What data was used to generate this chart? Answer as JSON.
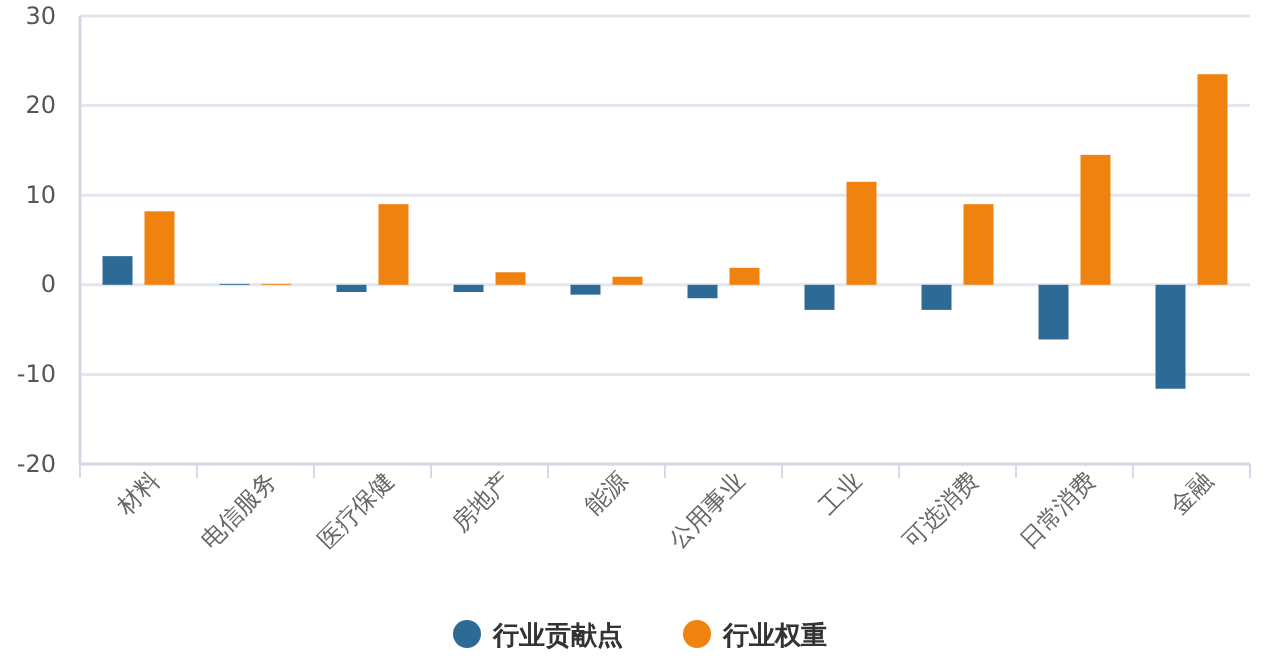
{
  "chart_data": {
    "type": "bar",
    "categories": [
      "材料",
      "电信服务",
      "医疗保健",
      "房地产",
      "能源",
      "公用事业",
      "工业",
      "可选消费",
      "日常消费",
      "金融"
    ],
    "series": [
      {
        "name": "行业贡献点",
        "color": "#2e6a96",
        "values": [
          3.2,
          0.1,
          -0.8,
          -0.8,
          -1.1,
          -1.5,
          -2.8,
          -2.8,
          -6.1,
          -11.6
        ]
      },
      {
        "name": "行业权重",
        "color": "#f0820f",
        "values": [
          8.2,
          0.1,
          9.0,
          1.4,
          0.9,
          1.9,
          11.5,
          9.0,
          14.5,
          23.5
        ]
      }
    ],
    "ylim": [
      -20,
      30
    ],
    "yticks": [
      -20,
      -10,
      0,
      10,
      20,
      30
    ],
    "grid": "y",
    "legend": "bottom"
  }
}
